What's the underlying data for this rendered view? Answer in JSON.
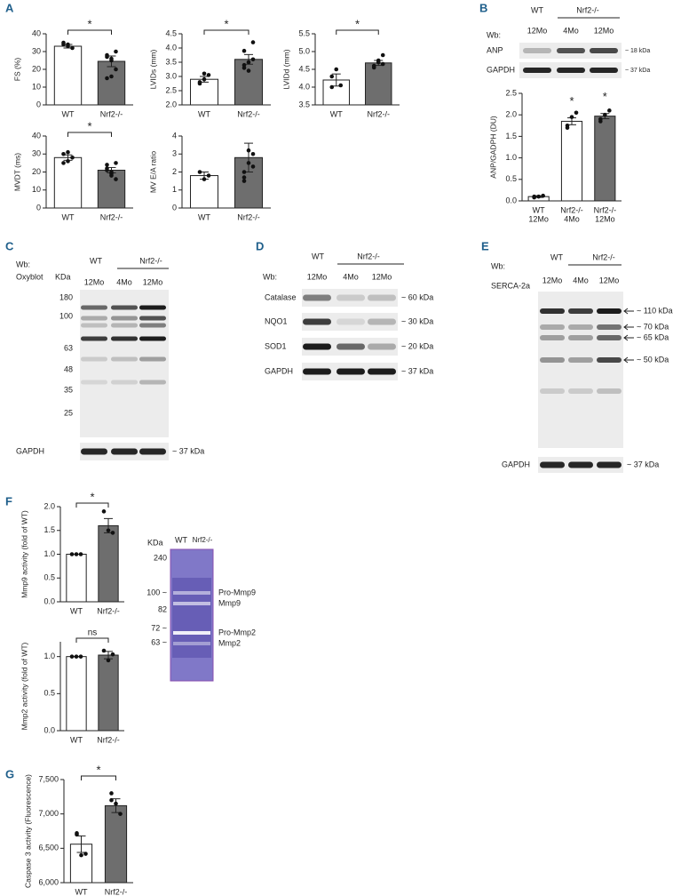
{
  "panel_labels": [
    "A",
    "B",
    "C",
    "D",
    "E",
    "F",
    "G"
  ],
  "chart_data": [
    {
      "type": "bar",
      "ylabel": "FS (%)",
      "categories": [
        "WT",
        "Nrf2-/-"
      ],
      "values": [
        33,
        24.5
      ],
      "errors": [
        1,
        3
      ],
      "points": [
        [
          34,
          33,
          32,
          35,
          34
        ],
        [
          27,
          26,
          20,
          15,
          16,
          30,
          28,
          25
        ]
      ],
      "colors": [
        "#ffffff",
        "#6e6e6e"
      ],
      "ylim": [
        0,
        40
      ],
      "yticks": [
        0,
        10,
        20,
        30,
        40
      ],
      "annotation": "*"
    },
    {
      "type": "bar",
      "ylabel": "LVIDs (mm)",
      "categories": [
        "WT",
        "Nrf2-/-"
      ],
      "values": [
        2.9,
        3.6
      ],
      "errors": [
        0.1,
        0.17
      ],
      "points": [
        [
          2.8,
          2.9,
          3.05,
          2.75,
          3.1
        ],
        [
          3.3,
          3.5,
          4.2,
          3.9,
          3.2,
          3.6,
          3.4
        ]
      ],
      "colors": [
        "#ffffff",
        "#6e6e6e"
      ],
      "ylim": [
        2,
        4.5
      ],
      "yticks": [
        {
          "value": 2,
          "label": "2.0"
        },
        2.5,
        {
          "value": 3,
          "label": "3.0"
        },
        3.5,
        {
          "value": 4,
          "label": "4.0"
        },
        4.5
      ],
      "annotation": "*"
    },
    {
      "type": "bar",
      "ylabel": "LVIDd (mm)",
      "categories": [
        "WT",
        "Nrf2-/-"
      ],
      "values": [
        4.2,
        4.68
      ],
      "errors": [
        0.17,
        0.07
      ],
      "points": [
        [
          4.0,
          4.5,
          4.05,
          4.3
        ],
        [
          4.6,
          4.7,
          4.9,
          4.55,
          4.75,
          4.65
        ]
      ],
      "colors": [
        "#ffffff",
        "#6e6e6e"
      ],
      "ylim": [
        3.5,
        5.5
      ],
      "yticks": [
        3.5,
        {
          "value": 4,
          "label": "4.0"
        },
        4.5,
        {
          "value": 5,
          "label": "5.0"
        },
        5.5
      ],
      "annotation": "*"
    },
    {
      "type": "bar",
      "ylabel": "MVDT (ms)",
      "categories": [
        "WT",
        "Nrf2-/-"
      ],
      "values": [
        28,
        21
      ],
      "errors": [
        1.5,
        1.5
      ],
      "points": [
        [
          30,
          26,
          28,
          25,
          31
        ],
        [
          24,
          20,
          16,
          22,
          18,
          25,
          21,
          19
        ]
      ],
      "colors": [
        "#ffffff",
        "#6e6e6e"
      ],
      "ylim": [
        0,
        40
      ],
      "yticks": [
        0,
        10,
        20,
        30,
        40
      ],
      "annotation": "*"
    },
    {
      "type": "bar",
      "ylabel": "MV E/A ratio",
      "categories": [
        "WT",
        "Nrf2-/-"
      ],
      "values": [
        1.8,
        2.8
      ],
      "errors": [
        0.2,
        0.8
      ],
      "points": [
        [
          2.0,
          1.6,
          1.8
        ],
        [
          2.0,
          3.2,
          3.0,
          1.7,
          2.5,
          2.3,
          1.5
        ]
      ],
      "colors": [
        "#ffffff",
        "#6e6e6e"
      ],
      "ylim": [
        0,
        4
      ],
      "yticks": [
        0,
        1,
        2,
        3,
        4
      ]
    },
    {
      "type": "bar",
      "ylabel": "ANP/GADPH (DU)",
      "categories": [
        "WT",
        "Nrf2-/-",
        "Nrf2-/-"
      ],
      "subcategories": [
        "12Mo",
        "4Mo",
        "12Mo"
      ],
      "values": [
        0.1,
        1.85,
        1.97
      ],
      "errors": [
        0.02,
        0.08,
        0.06
      ],
      "points": [
        [
          0.08,
          0.1,
          0.12,
          0.1
        ],
        [
          1.75,
          1.95,
          2.05,
          1.7
        ],
        [
          1.9,
          2.0,
          2.1,
          1.85
        ]
      ],
      "colors": [
        "#ffffff",
        "#ffffff",
        "#6e6e6e"
      ],
      "ylim": [
        0,
        2.5
      ],
      "yticks": [
        {
          "value": 0,
          "label": "0.0"
        },
        0.5,
        {
          "value": 1,
          "label": "1.0"
        },
        1.5,
        {
          "value": 2,
          "label": "2.0"
        },
        2.5
      ],
      "bar_annotations": [
        null,
        "*",
        "*"
      ]
    },
    {
      "type": "bar",
      "ylabel": "Mmp9 activity (fold of WT)",
      "categories": [
        "WT",
        "Nrf2-/-"
      ],
      "values": [
        1.0,
        1.6
      ],
      "errors": [
        0,
        0.15
      ],
      "points": [
        [
          1.0,
          1.0,
          1.0
        ],
        [
          1.9,
          1.5,
          1.45
        ]
      ],
      "colors": [
        "#ffffff",
        "#6e6e6e"
      ],
      "ylim": [
        0,
        2
      ],
      "yticks": [
        {
          "value": 0,
          "label": "0.0"
        },
        0.5,
        {
          "value": 1,
          "label": "1.0"
        },
        1.5,
        {
          "value": 2,
          "label": "2.0"
        }
      ],
      "annotation": "*"
    },
    {
      "type": "bar",
      "ylabel": "Mmp2 activity (fold of WT)",
      "categories": [
        "WT",
        "Nrf2-/-"
      ],
      "values": [
        1.0,
        1.02
      ],
      "errors": [
        0,
        0.05
      ],
      "points": [
        [
          1.0,
          1.0,
          1.0
        ],
        [
          1.08,
          0.95,
          1.03
        ]
      ],
      "colors": [
        "#ffffff",
        "#6e6e6e"
      ],
      "ylim": [
        0,
        1.2
      ],
      "yticks": [
        {
          "value": 0,
          "label": "0.0"
        },
        0.5,
        {
          "value": 1,
          "label": "1.0"
        }
      ],
      "annotation": "ns"
    },
    {
      "type": "bar",
      "ylabel": "Caspase 3 activity (Fluorescence)",
      "categories": [
        "WT",
        "Nrf2-/-"
      ],
      "values": [
        6560,
        7120
      ],
      "errors": [
        120,
        100
      ],
      "points": [
        [
          6700,
          6400,
          6420,
          6720
        ],
        [
          7300,
          7150,
          7000,
          7200
        ]
      ],
      "colors": [
        "#ffffff",
        "#6e6e6e"
      ],
      "ylim": [
        6000,
        7500
      ],
      "yticks": [
        {
          "value": 6000,
          "label": "6,000"
        },
        {
          "value": 6500,
          "label": "6,500"
        },
        {
          "value": 7000,
          "label": "7,000"
        },
        {
          "value": 7500,
          "label": "7,500"
        }
      ],
      "annotation": "*"
    }
  ],
  "blots": {
    "B": {
      "groups": [
        "WT",
        "Nrf2-/-"
      ],
      "wb": "Wb:",
      "lanes": [
        "12Mo",
        "4Mo",
        "12Mo"
      ],
      "rows": [
        {
          "label": "ANP",
          "size": "~ 18 kDa"
        },
        {
          "label": "GAPDH",
          "size": "~ 37 kDa"
        }
      ]
    },
    "C": {
      "groups": [
        "WT",
        "Nrf2-/-"
      ],
      "wb": "Wb:",
      "probe": "Oxyblot",
      "kda": "KDa",
      "lanes": [
        "12Mo",
        "4Mo",
        "12Mo"
      ],
      "markers": [
        "180",
        "100",
        "63",
        "48",
        "35",
        "25"
      ],
      "rows": [
        {
          "label": "GAPDH",
          "size": "~ 37 kDa"
        }
      ]
    },
    "D": {
      "groups": [
        "WT",
        "Nrf2-/-"
      ],
      "wb": "Wb:",
      "lanes": [
        "12Mo",
        "4Mo",
        "12Mo"
      ],
      "rows": [
        {
          "label": "Catalase",
          "size": "~ 60 kDa"
        },
        {
          "label": "NQO1",
          "size": "~ 30 kDa"
        },
        {
          "label": "SOD1",
          "size": "~ 20 kDa"
        },
        {
          "label": "GAPDH",
          "size": "~ 37 kDa"
        }
      ]
    },
    "E": {
      "groups": [
        "WT",
        "Nrf2-/-"
      ],
      "wb": "Wb:",
      "probe": "SERCA-2a",
      "lanes": [
        "12Mo",
        "4Mo",
        "12Mo"
      ],
      "arrows": [
        "~ 110 kDa",
        "~ 70 kDa",
        "~ 65 kDa",
        "~ 50 kDa"
      ],
      "rows": [
        {
          "label": "GAPDH",
          "size": "~ 37 kDa"
        }
      ]
    },
    "F": {
      "kda": "KDa",
      "lanes": [
        "WT",
        "Nrf2-/-"
      ],
      "markers": [
        "240",
        "100 ~",
        "82",
        "72 ~",
        "63 ~"
      ],
      "bands": [
        "Pro-Mmp9",
        "Mmp9",
        "Pro-Mmp2",
        "Mmp2"
      ]
    }
  }
}
